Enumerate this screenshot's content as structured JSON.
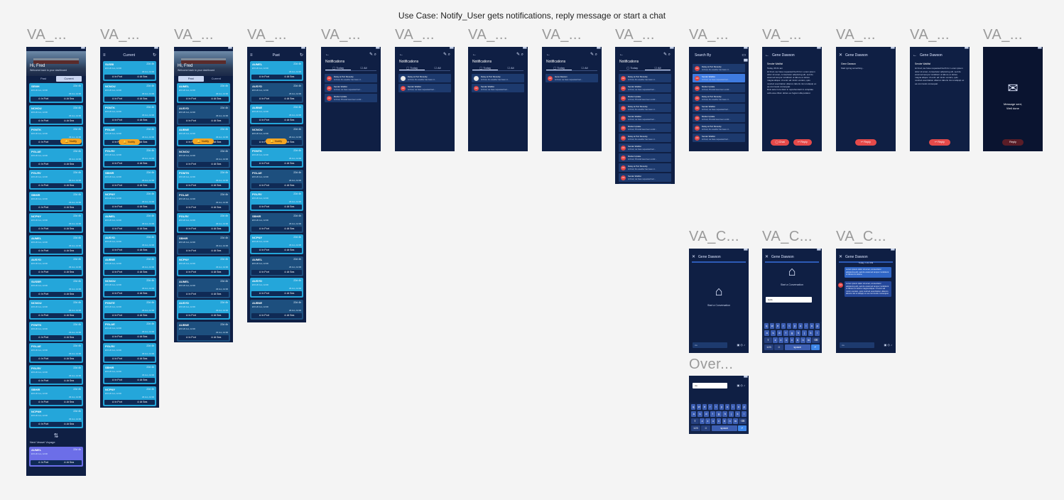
{
  "title": "Use Case: Notify_User gets notifications, reply message or start a chat",
  "frame_label": "VA_...",
  "frame_label_c": "VA_C...",
  "frame_label_over": "Over...",
  "header": {
    "current": "Current",
    "past": "Past",
    "notifications": "Notifications",
    "search": "Search By",
    "sender": "Gene Dawson"
  },
  "hero": {
    "greeting": "Hi, Fred",
    "sub": "Welcome back to your dashboard"
  },
  "tabs": {
    "past": "Past",
    "current": "Current"
  },
  "card_buttons": {
    "in_port": "In Port",
    "at_sea": "At Sea"
  },
  "notify_label": "Notify",
  "next_label": "Next Vessel Voyage",
  "vessels_a": [
    "SEMH",
    "NCHOU",
    "PGNTK",
    "PGLAE",
    "PGLRV",
    "SBHIR",
    "NCPNY",
    "AUMEL",
    "AUSYD",
    "SUSBR",
    "NCNOU",
    "PGMTK",
    "PGLAE",
    "PGLRV",
    "SBHIR",
    "NCPNH"
  ],
  "vessels_b": [
    "SUSBI",
    "NCNOU",
    "PGNTK",
    "PGLAE",
    "PGLRV",
    "SBHIR",
    "NCPNY",
    "AUMEL",
    "AUSYD",
    "AUBNE",
    "NCNOU",
    "PGNTE",
    "PGLAE",
    "PGLRV",
    "SBHIR",
    "NCPNY"
  ],
  "vessels_c": [
    "AUMEL",
    "AUSYD",
    "AUBNE",
    "NCNOU",
    "PGMTK",
    "PGLAE",
    "PGLRV",
    "SBHIR",
    "NCPNY",
    "AUMEL",
    "AUSYD",
    "AUBNE"
  ],
  "vessels_d": [
    "AUMEL",
    "AUSYD",
    "AUBNE",
    "NCNOU",
    "PGNTK",
    "PGLAE",
    "PGLRV",
    "SBHIR",
    "NCPNY",
    "AUMEL",
    "AUSYD",
    "AUBNE"
  ],
  "next_vessel": "AUMEL",
  "card_time": "22d 4h",
  "card_sub": "ETA 26 Jun, 12:00",
  "card_sub2": "29 Jun, 12:00",
  "seg": {
    "today": "Today",
    "all": "All"
  },
  "notifs": [
    {
      "l1": "Delay at Port Moresby",
      "l2": "Hi Fred, the weather has been cl..."
    },
    {
      "l1": "Sender Waitlist",
      "l2": "Hi Fred, we have requested bert..."
    },
    {
      "l1": "Market Update",
      "l2": "Hi Fred, PGLAE have been confir..."
    }
  ],
  "notif_single": {
    "l1": "Gene Dawson",
    "l2": "Hi Fred, we have requested bert..."
  },
  "msg": {
    "head": "Sender Waitlist",
    "date": "Today, 09:41 am",
    "body": "Hi Fred, we have requested berth for. Lorem ipsum dolor sit amet, consectetur adipiscing elit, sed do eiusmod tempor incididunt ut labore et dolore magna aliqua. Ut enim ad minim veniam, quis nostrud exercitation ullamco laboris nisi ut aliquip ex ea commodo consequat.",
    "body2": "Duis aute irure dolor in reprehenderit in voluptate velit esse cillum dolore eu fugiat nulla pariatur."
  },
  "reply": {
    "head": "Gene Dawson",
    "sub": "Start typing something..."
  },
  "buttons": {
    "chat": "Chat",
    "reply": "Reply"
  },
  "sent": {
    "l1": "Message sent,",
    "l2": "Well done"
  },
  "conv": {
    "start": "Start a Conversation",
    "input": "Aa",
    "typed": "Hello",
    "today": "Today, 1:41 PM"
  },
  "keyboard": {
    "r1": [
      "q",
      "w",
      "e",
      "r",
      "t",
      "y",
      "u",
      "i",
      "o",
      "p"
    ],
    "r2": [
      "a",
      "s",
      "d",
      "f",
      "g",
      "h",
      "j",
      "k",
      "l"
    ],
    "r3": [
      "⇧",
      "z",
      "x",
      "c",
      "v",
      "b",
      "n",
      "m",
      "⌫"
    ],
    "r4": [
      "123",
      "☺",
      "space",
      "↵"
    ]
  },
  "bubbles": {
    "out1": "Lorem ipsum dolor sit amet, consectetur adipiscing elit, sed do eiusmod tempor incididunt ut labore et dolore.",
    "in1": "Lorem ipsum dolor sit amet, consectetur adipiscing elit, sed do eiusmod tempor incididunt ut labore et dolore magna aliqua. Ut enim ad minim veniam, quis nostrud exercitation ullamco laboris nisi ut aliquip ex ea commodo consequat."
  },
  "colors": {
    "frame": "#0f1f44",
    "card_light": "#24a6da",
    "card_dark": "#1d4f7e",
    "notify": "#f5a623",
    "action": "#e54a4a"
  }
}
